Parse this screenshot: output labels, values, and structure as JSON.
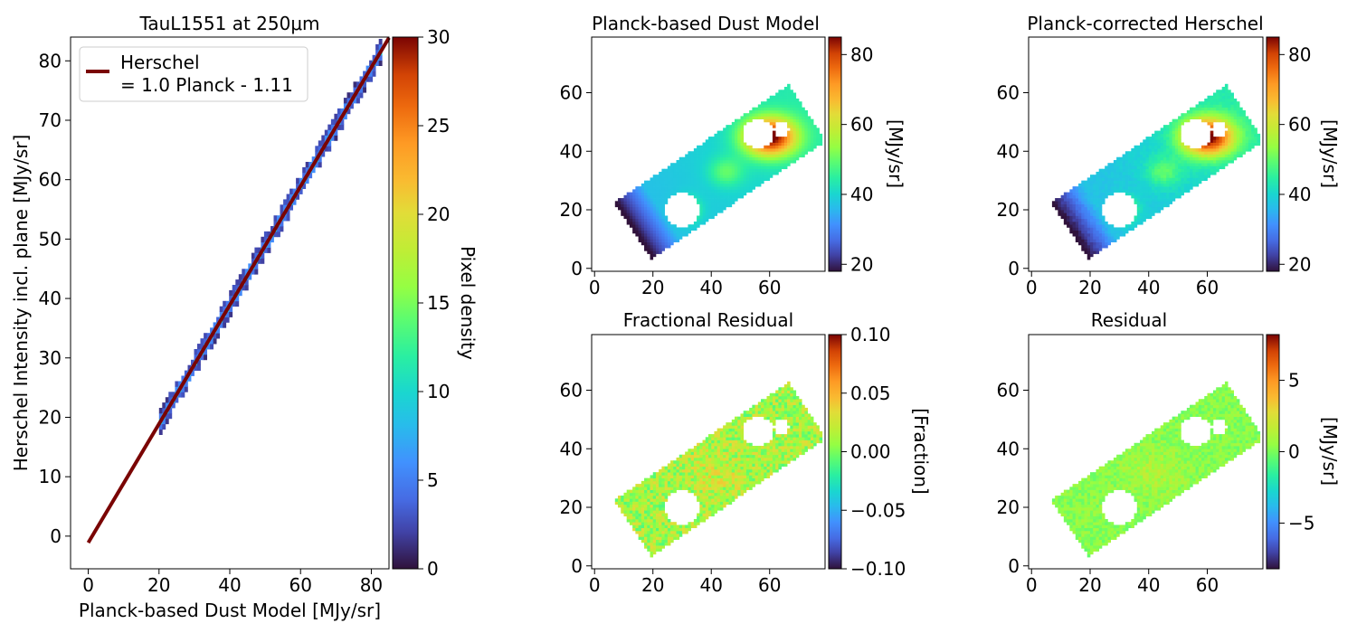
{
  "figure": {
    "panels": [
      "scatter-density",
      "dust-model-map",
      "corrected-herschel-map",
      "fractional-residual-map",
      "residual-map"
    ]
  },
  "colors": {
    "fit_line": "#7a0403",
    "axis": "#000000",
    "background": "#ffffff",
    "colormap": "turbo"
  },
  "chart_data": [
    {
      "id": "scatter",
      "type": "heatmap",
      "title": "TauL1551 at 250μm",
      "xlabel": "Planck-based Dust Model [MJy/sr]",
      "ylabel": "Herschel Intensity incl. plane [MJy/sr]",
      "xlim": [
        -5,
        85
      ],
      "ylim": [
        -5.5,
        84
      ],
      "x_ticks": [
        0,
        20,
        40,
        60,
        80
      ],
      "y_ticks": [
        0,
        10,
        20,
        30,
        40,
        50,
        60,
        70,
        80
      ],
      "density_range": [
        20,
        83
      ],
      "fit": {
        "slope": 1.0,
        "intercept": -1.11,
        "x_range": [
          0,
          85
        ]
      },
      "legend": {
        "line1": "Herschel",
        "line2": "= 1.0 Planck - 1.11",
        "placement": "upper-left"
      },
      "colorbar": {
        "label": "Pixel density",
        "range": [
          0,
          30
        ],
        "ticks": [
          0,
          5,
          10,
          15,
          20,
          25,
          30
        ]
      }
    },
    {
      "id": "model",
      "type": "heatmap",
      "title": "Planck-based Dust Model",
      "xlim": [
        -1,
        79
      ],
      "ylim": [
        -1,
        79
      ],
      "x_ticks": [
        0,
        20,
        40,
        60
      ],
      "y_ticks": [
        0,
        20,
        40,
        60
      ],
      "colorbar": {
        "label": "[MJy/sr]",
        "range": [
          18,
          85
        ],
        "ticks": [
          20,
          40,
          60,
          80
        ]
      }
    },
    {
      "id": "corrected",
      "type": "heatmap",
      "title": "Planck-corrected Herschel",
      "xlim": [
        -1,
        79
      ],
      "ylim": [
        -1,
        79
      ],
      "x_ticks": [
        0,
        20,
        40,
        60
      ],
      "y_ticks": [
        0,
        20,
        40,
        60
      ],
      "colorbar": {
        "label": "[MJy/sr]",
        "range": [
          18,
          85
        ],
        "ticks": [
          20,
          40,
          60,
          80
        ]
      }
    },
    {
      "id": "fracres",
      "type": "heatmap",
      "title": "Fractional Residual",
      "xlim": [
        -1,
        79
      ],
      "ylim": [
        -1,
        79
      ],
      "x_ticks": [
        0,
        20,
        40,
        60
      ],
      "y_ticks": [
        0,
        20,
        40,
        60
      ],
      "colorbar": {
        "label": "[Fraction]",
        "range": [
          -0.1,
          0.1
        ],
        "ticks": [
          -0.1,
          -0.05,
          0.0,
          0.05,
          0.1
        ],
        "tick_labels": [
          "−0.10",
          "−0.05",
          "0.00",
          "0.05",
          "0.10"
        ]
      }
    },
    {
      "id": "res",
      "type": "heatmap",
      "title": "Residual",
      "xlim": [
        -1,
        79
      ],
      "ylim": [
        -1,
        79
      ],
      "x_ticks": [
        0,
        20,
        40,
        60
      ],
      "y_ticks": [
        0,
        20,
        40,
        60
      ],
      "colorbar": {
        "label": "[MJy/sr]",
        "range": [
          -8.2,
          8.2
        ],
        "ticks": [
          -5,
          0,
          5
        ],
        "tick_labels": [
          "−5",
          "0",
          "5"
        ]
      }
    }
  ]
}
